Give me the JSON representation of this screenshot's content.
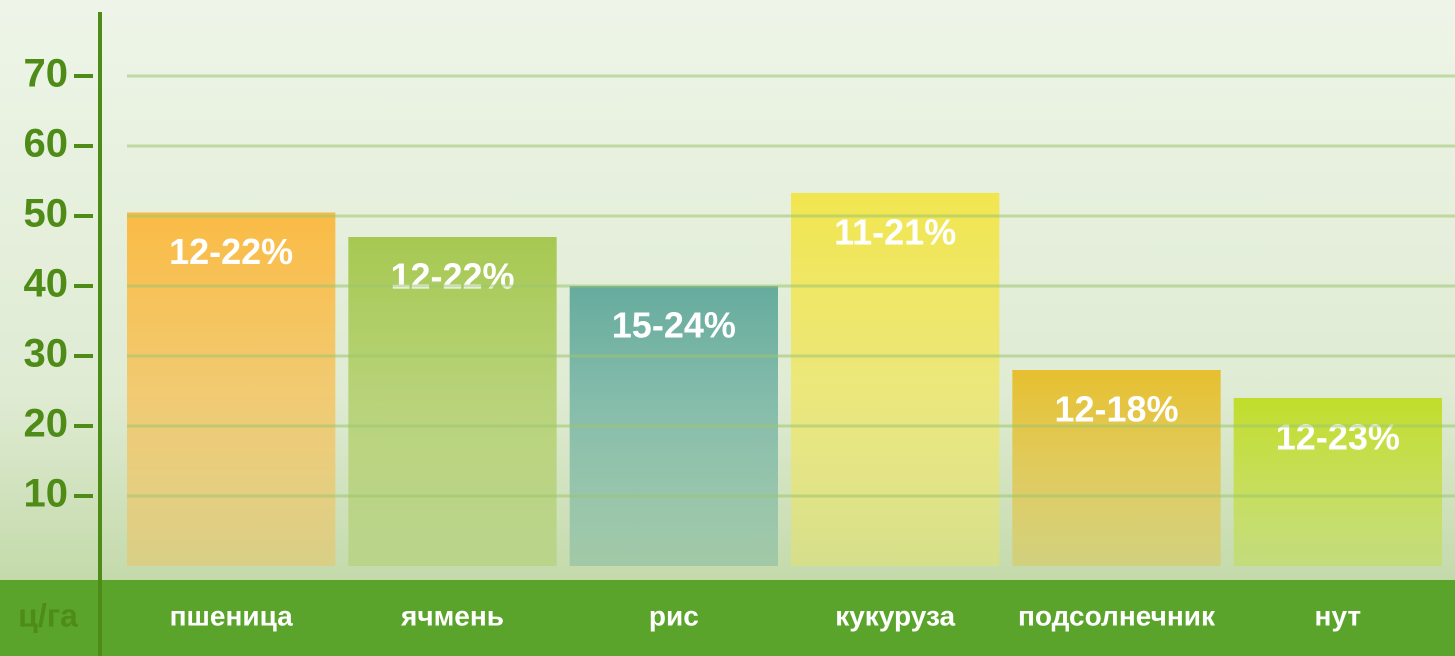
{
  "chart_data": {
    "type": "bar",
    "y_label": "ц/га",
    "categories": [
      "пшеница",
      "ячмень",
      "рис",
      "кукуруза",
      "подсолнечник",
      "нут"
    ],
    "values": [
      50.5,
      47,
      40,
      53.3,
      28,
      24
    ],
    "annotations": [
      "12-22%",
      "12-22%",
      "15-24%",
      "11-21%",
      "12-18%",
      "12-23%"
    ],
    "colors": [
      "#fbb83c",
      "#a3c64a",
      "#5fa89a",
      "#f2e548",
      "#e6bd26",
      "#bfdc22"
    ],
    "ylim": [
      0,
      79
    ],
    "yticks": [
      10,
      20,
      30,
      40,
      50,
      60,
      70
    ],
    "grid": true
  }
}
